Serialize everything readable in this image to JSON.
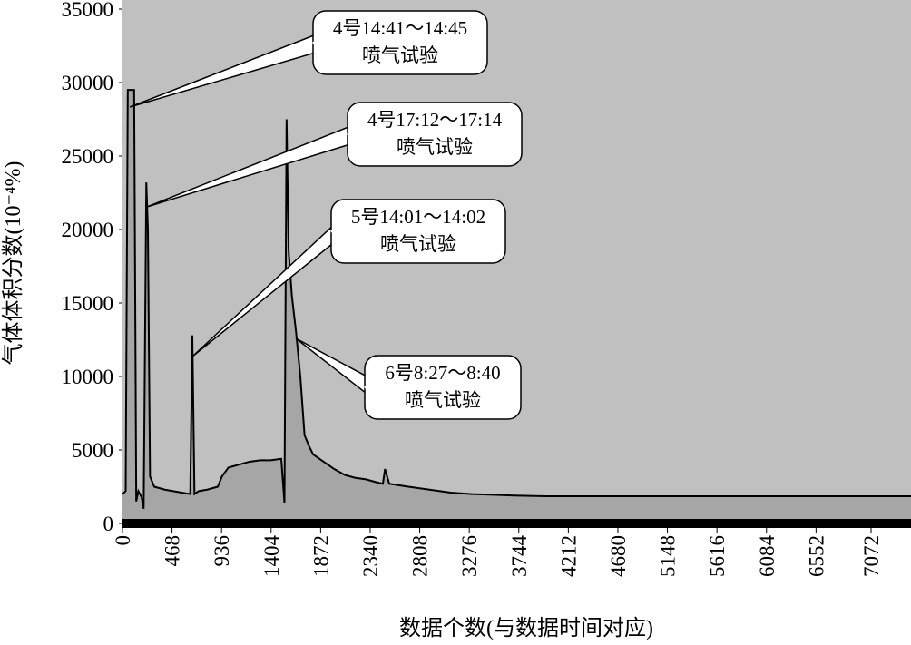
{
  "chart_data": {
    "type": "area",
    "y_label": "气体体积分数(10⁻⁴%)",
    "x_label": "数据个数(与数据时间对应)",
    "xlim": [
      0,
      7449
    ],
    "xticks": [
      0,
      468,
      936,
      1404,
      1872,
      2340,
      2808,
      3276,
      3744,
      4212,
      4680,
      5148,
      5616,
      6084,
      6552,
      7072
    ],
    "ylim": [
      0,
      35000
    ],
    "yticks": [
      0,
      5000,
      10000,
      15000,
      20000,
      25000,
      30000,
      35000
    ],
    "series": [
      {
        "color": "#000000",
        "fill": "#a6a6a6",
        "x": [
          0,
          30,
          50,
          80,
          110,
          130,
          150,
          180,
          200,
          225,
          240,
          260,
          300,
          400,
          560,
          640,
          660,
          680,
          720,
          800,
          900,
          940,
          1000,
          1100,
          1200,
          1300,
          1400,
          1500,
          1530,
          1550,
          1570,
          1600,
          1640,
          1680,
          1720,
          1760,
          1800,
          1900,
          2000,
          2100,
          2200,
          2300,
          2400,
          2460,
          2480,
          2520,
          2700,
          2900,
          3100,
          3300,
          3500,
          3700,
          4000,
          4300,
          4600,
          4900,
          5200,
          5500,
          5800,
          6100,
          6400,
          6700,
          7000,
          7300,
          7449
        ],
        "values": [
          2000,
          2200,
          29500,
          29500,
          29500,
          1500,
          2200,
          1800,
          1000,
          23200,
          20000,
          3200,
          2500,
          2300,
          2100,
          2000,
          12800,
          2000,
          2200,
          2300,
          2500,
          3200,
          3800,
          4000,
          4200,
          4300,
          4300,
          4400,
          1400,
          27500,
          18500,
          15500,
          13000,
          10000,
          6000,
          5300,
          4700,
          4200,
          3700,
          3300,
          3100,
          3000,
          2800,
          2700,
          3700,
          2700,
          2500,
          2300,
          2100,
          2000,
          1950,
          1900,
          1850,
          1850,
          1850,
          1850,
          1850,
          1850,
          1850,
          1850,
          1850,
          1850,
          1850,
          1850,
          1850
        ]
      }
    ],
    "annotations": [
      {
        "text": [
          "4号14:41～14:45",
          "喷气试验"
        ]
      },
      {
        "text": [
          "4号17:12～17:14",
          "喷气试验"
        ]
      },
      {
        "text": [
          "5号14:01～14:02",
          "喷气试验"
        ]
      },
      {
        "text": [
          "6号8:27～8:40",
          "喷气试验"
        ]
      }
    ]
  }
}
